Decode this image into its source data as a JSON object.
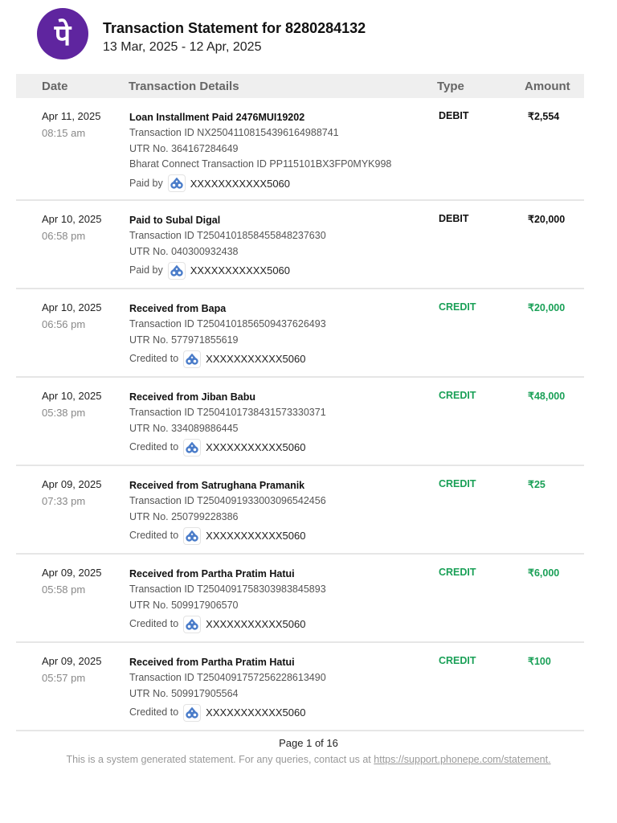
{
  "header": {
    "title": "Transaction Statement for 8280284132",
    "period": "13 Mar, 2025 - 12 Apr, 2025",
    "logo_glyph": "पे",
    "brand_color": "#5f259f"
  },
  "table": {
    "columns": [
      "Date",
      "Transaction Details",
      "Type",
      "Amount"
    ]
  },
  "transactions": [
    {
      "date": "Apr 11, 2025",
      "time": "08:15 am",
      "title": "Loan Installment Paid 2476MUI19202",
      "txn_id": "Transaction ID NX2504110815439616498874l",
      "utr": "UTR No. 364167284649",
      "extra": "Bharat Connect Transaction ID PP115101BX3FP0MYK998",
      "acct_label": "Paid by",
      "acct": "XXXXXXXXXXX5060",
      "type": "DEBIT",
      "amount": "₹2,554"
    },
    {
      "date": "Apr 10, 2025",
      "time": "06:58 pm",
      "title": "Paid to Subal Digal",
      "txn_id": "Transaction ID T2504101858455848237630",
      "utr": "UTR No. 040300932438",
      "acct_label": "Paid by",
      "acct": "XXXXXXXXXXX5060",
      "type": "DEBIT",
      "amount": "₹20,000"
    },
    {
      "date": "Apr 10, 2025",
      "time": "06:56 pm",
      "title": "Received from Bapa",
      "txn_id": "Transaction ID T2504101856509437626493",
      "utr": "UTR No. 577971855619",
      "acct_label": "Credited to",
      "acct": "XXXXXXXXXXX5060",
      "type": "CREDIT",
      "amount": "₹20,000"
    },
    {
      "date": "Apr 10, 2025",
      "time": "05:38 pm",
      "title": "Received from Jiban Babu",
      "txn_id": "Transaction ID T2504101738431573330371",
      "utr": "UTR No. 334089886445",
      "acct_label": "Credited to",
      "acct": "XXXXXXXXXXX5060",
      "type": "CREDIT",
      "amount": "₹48,000"
    },
    {
      "date": "Apr 09, 2025",
      "time": "07:33 pm",
      "title": "Received from Satrughana Pramanik",
      "txn_id": "Transaction ID T2504091933003096542456",
      "utr": "UTR No. 250799228386",
      "acct_label": "Credited to",
      "acct": "XXXXXXXXXXX5060",
      "type": "CREDIT",
      "amount": "₹25"
    },
    {
      "date": "Apr 09, 2025",
      "time": "05:58 pm",
      "title": "Received from Partha Pratim Hatui",
      "txn_id": "Transaction ID T2504091758303983845893",
      "utr": "UTR No. 509917906570",
      "acct_label": "Credited to",
      "acct": "XXXXXXXXXXX5060",
      "type": "CREDIT",
      "amount": "₹6,000"
    },
    {
      "date": "Apr 09, 2025",
      "time": "05:57 pm",
      "title": "Received from Partha Pratim Hatui",
      "txn_id": "Transaction ID T2504091757256228613490",
      "utr": "UTR No. 509917905564",
      "acct_label": "Credited to",
      "acct": "XXXXXXXXXXX5060",
      "type": "CREDIT",
      "amount": "₹100"
    }
  ],
  "footer": {
    "page": "Page 1 of 16",
    "note": "This is a system generated statement. For any queries, contact us at",
    "link": "https://support.phonepe.com/statement."
  },
  "colors": {
    "credit": "#1aa057",
    "debit": "#111111",
    "bank_icon": "#4a7cc9"
  }
}
